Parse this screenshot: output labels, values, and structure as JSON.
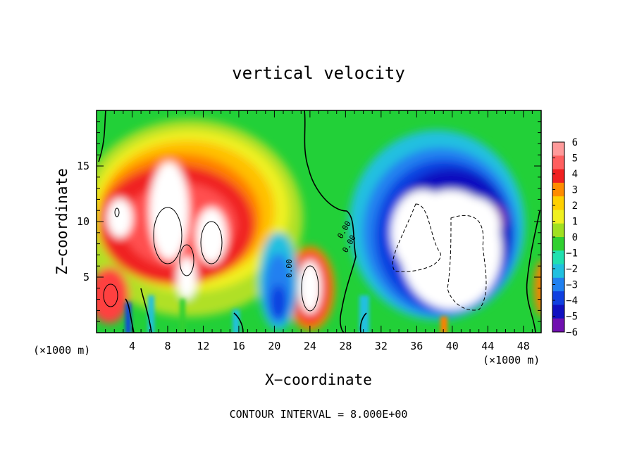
{
  "chart_data": {
    "type": "heatmap",
    "title": "vertical velocity",
    "xlabel": "X−coordinate",
    "ylabel": "Z−coordinate",
    "x_unit_left": "(×1000 m)",
    "x_unit_right": "(×1000 m)",
    "footer": "CONTOUR INTERVAL = 8.000E+00",
    "xlim": [
      0,
      50
    ],
    "ylim": [
      0,
      20
    ],
    "x_ticks": [
      4,
      8,
      12,
      16,
      20,
      24,
      28,
      32,
      36,
      40,
      44,
      48
    ],
    "x_tick_labels": [
      "4",
      "8",
      "12",
      "16",
      "20",
      "24",
      "28",
      "32",
      "36",
      "40",
      "44",
      "48"
    ],
    "y_ticks": [
      5,
      10,
      15
    ],
    "y_tick_labels": [
      "5",
      "10",
      "15"
    ],
    "colorbar": {
      "levels": [
        6,
        5,
        4,
        3,
        2,
        1,
        0,
        -1,
        -2,
        -3,
        -4,
        -5,
        -6
      ],
      "labels": [
        "6",
        "5",
        "4",
        "3",
        "2",
        "1",
        "0",
        "−1",
        "−2",
        "−3",
        "−4",
        "−5",
        "−6"
      ],
      "colors": [
        "#ff9a9a",
        "#ff5f5f",
        "#f02020",
        "#ff8c00",
        "#ffd000",
        "#f0f020",
        "#a0e020",
        "#30d030",
        "#20e0b0",
        "#20c0e0",
        "#2080f0",
        "#1040e0",
        "#1010c0",
        "#7010b0"
      ]
    },
    "contour_labels": [
      "0.00",
      "0.00",
      "0.00"
    ],
    "features": [
      {
        "kind": "updraft",
        "x": 10,
        "z": 9,
        "value": 6
      },
      {
        "kind": "updraft",
        "x": 24,
        "z": 4,
        "value": 6
      },
      {
        "kind": "updraft",
        "x": 1,
        "z": 3,
        "value": 6
      },
      {
        "kind": "downdraft",
        "x": 38,
        "z": 7,
        "value": -6
      },
      {
        "kind": "downdraft",
        "x": 20,
        "z": 4,
        "value": -4
      }
    ]
  }
}
